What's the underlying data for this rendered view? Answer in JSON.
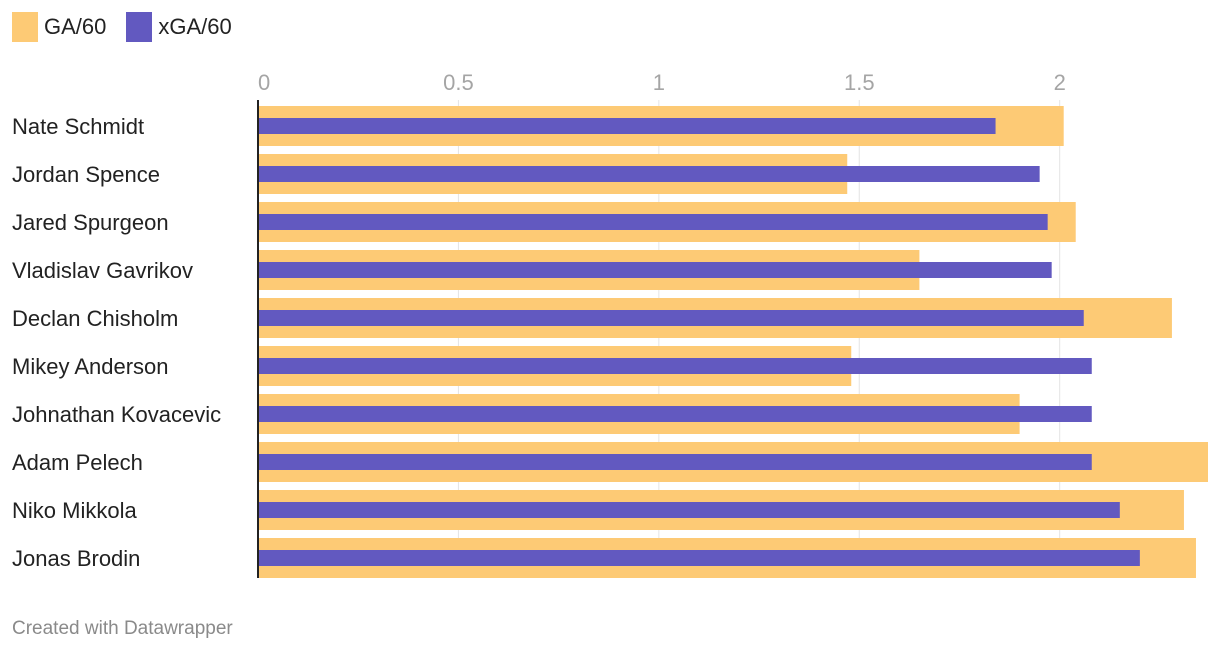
{
  "legend": {
    "items": [
      {
        "label": "GA/60",
        "color": "#fdca75"
      },
      {
        "label": "xGA/60",
        "color": "#6259c0"
      }
    ]
  },
  "footer": {
    "text": "Created with Datawrapper"
  },
  "chart_data": {
    "type": "bar",
    "orientation": "horizontal",
    "categories": [
      "Nate Schmidt",
      "Jordan Spence",
      "Jared Spurgeon",
      "Vladislav Gavrikov",
      "Declan Chisholm",
      "Mikey Anderson",
      "Johnathan Kovacevic",
      "Adam Pelech",
      "Niko Mikkola",
      "Jonas Brodin"
    ],
    "series": [
      {
        "name": "GA/60",
        "color": "#fdca75",
        "values": [
          2.01,
          1.47,
          2.04,
          1.65,
          2.28,
          1.48,
          1.9,
          2.37,
          2.31,
          2.34
        ]
      },
      {
        "name": "xGA/60",
        "color": "#6259c0",
        "values": [
          1.84,
          1.95,
          1.97,
          1.98,
          2.06,
          2.08,
          2.08,
          2.08,
          2.15,
          2.2
        ]
      }
    ],
    "xlim": [
      0,
      2.37
    ],
    "ticks": [
      0,
      0.5,
      1,
      1.5,
      2
    ],
    "tick_labels": [
      "0",
      "0.5",
      "1",
      "1.5",
      "2"
    ],
    "grid": true,
    "legend_position": "top-left",
    "title": "",
    "xlabel": "",
    "ylabel": ""
  }
}
